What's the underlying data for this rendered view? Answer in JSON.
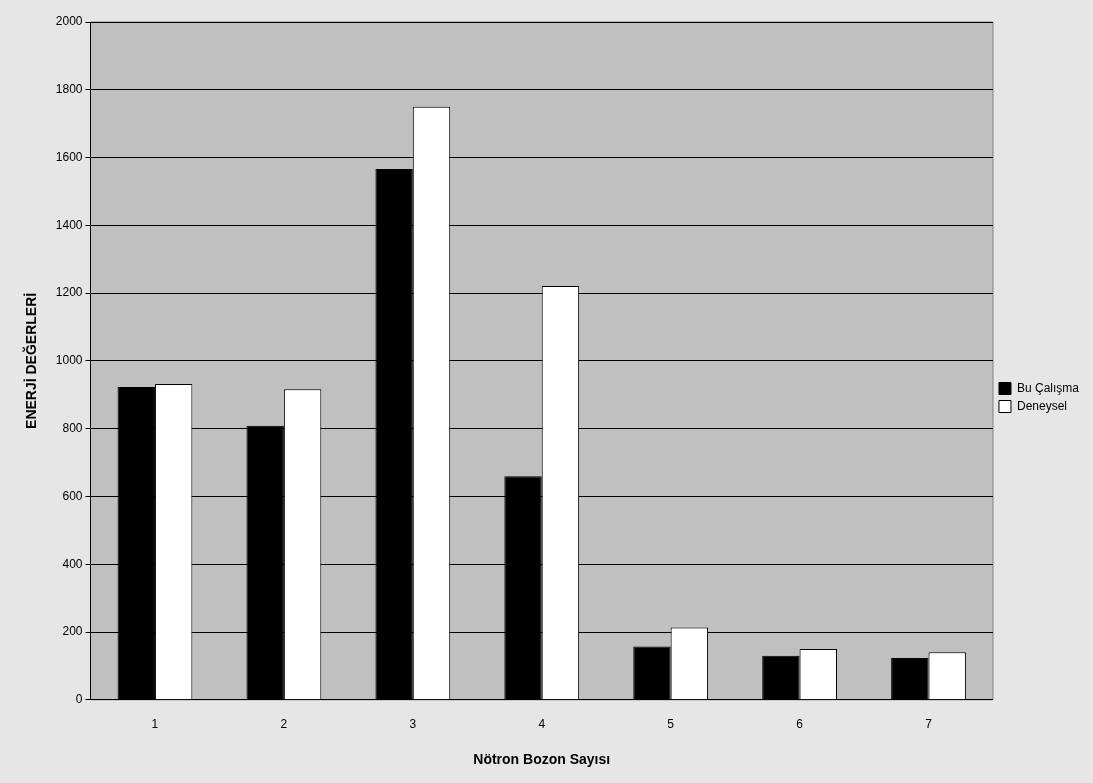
{
  "chart_data": {
    "type": "bar",
    "xlabel": "Nötron Bozon Sayısı",
    "ylabel": "ENERJİ DEĞERLERİ",
    "categories": [
      "1",
      "2",
      "3",
      "4",
      "5",
      "6",
      "7"
    ],
    "series": [
      {
        "name": "Bu Çalışma",
        "color": "#000000",
        "values": [
          923,
          809,
          1566,
          660,
          157,
          130,
          123
        ]
      },
      {
        "name": "Deneysel",
        "color": "#ffffff",
        "values": [
          932,
          916,
          1750,
          1221,
          213,
          150,
          140
        ]
      }
    ],
    "ylim": [
      0,
      2000
    ],
    "yticks": [
      0,
      200,
      400,
      600,
      800,
      1000,
      1200,
      1400,
      1600,
      1800,
      2000
    ],
    "grid": "y",
    "legend": "right"
  }
}
